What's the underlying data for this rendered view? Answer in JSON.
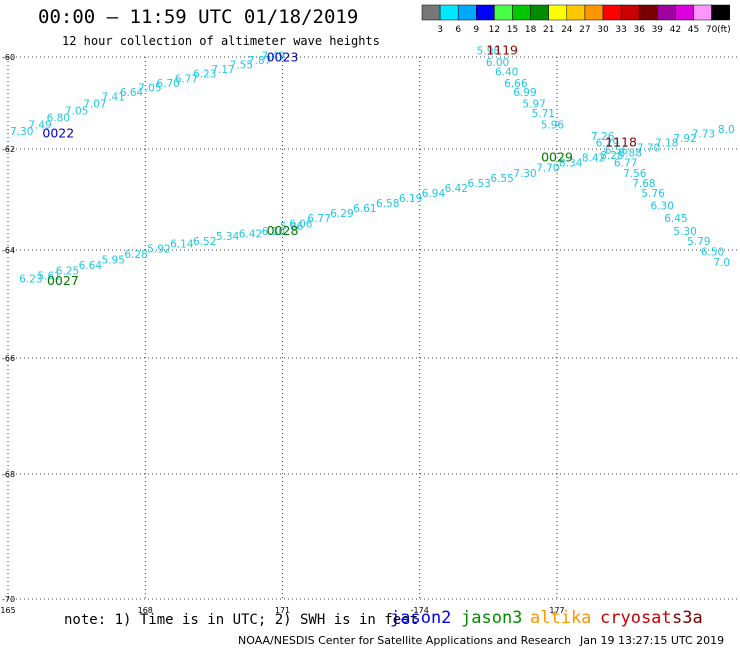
{
  "header": {
    "title": "00:00 – 11:59 UTC 01/18/2019",
    "subtitle": "12 hour collection of altimeter wave heights"
  },
  "scale": {
    "unit": "(ft)",
    "labels": [
      "3",
      "6",
      "9",
      "12",
      "15",
      "18",
      "21",
      "24",
      "27",
      "30",
      "33",
      "36",
      "39",
      "42",
      "45",
      "70"
    ],
    "colors": [
      "#777777",
      "#00e8ff",
      "#00a8ff",
      "#0000ff",
      "#48ff48",
      "#00c800",
      "#008c00",
      "#ffff00",
      "#ffc800",
      "#ff9600",
      "#ff0000",
      "#c80000",
      "#780000",
      "#a000a0",
      "#dc00dc",
      "#ff96ff",
      "#000000"
    ]
  },
  "chart_data": {
    "type": "scatter",
    "title": "00:00 – 11:59 UTC 01/18/2019",
    "subtitle": "12 hour collection of altimeter wave heights",
    "x_ticks": [
      "165",
      "168",
      "171",
      "-174",
      "177"
    ],
    "y_ticks": [
      "-60",
      "-62",
      "-64",
      "-66",
      "-68",
      "-70"
    ],
    "grid": true,
    "series": [
      {
        "name": "0022",
        "satellite": "jason2",
        "label_color": "#0000c8",
        "label": {
          "lon": 166.1,
          "lat": -61.75
        },
        "points": [
          {
            "lon": 165.3,
            "lat": -61.7,
            "v": "7.30"
          },
          {
            "lon": 165.7,
            "lat": -61.55,
            "v": "7.49"
          },
          {
            "lon": 166.1,
            "lat": -61.4,
            "v": "6.80"
          },
          {
            "lon": 166.5,
            "lat": -61.25,
            "v": "7.05"
          },
          {
            "lon": 166.9,
            "lat": -61.1,
            "v": "7.07"
          },
          {
            "lon": 167.3,
            "lat": -60.95,
            "v": "7.41"
          },
          {
            "lon": 167.7,
            "lat": -60.85,
            "v": "6.64"
          },
          {
            "lon": 168.1,
            "lat": -60.75,
            "v": "7.05"
          },
          {
            "lon": 168.5,
            "lat": -60.65,
            "v": "6.70"
          },
          {
            "lon": 168.9,
            "lat": -60.55,
            "v": "6.77"
          },
          {
            "lon": 169.3,
            "lat": -60.45,
            "v": "6.23"
          },
          {
            "lon": 169.7,
            "lat": -60.35,
            "v": "7.17"
          },
          {
            "lon": 170.1,
            "lat": -60.25,
            "v": "7.55"
          },
          {
            "lon": 170.5,
            "lat": -60.15,
            "v": "7.87"
          },
          {
            "lon": 170.8,
            "lat": -60.05,
            "v": "7.49"
          }
        ]
      },
      {
        "name": "0023",
        "satellite": "jason2",
        "label_color": "#0000c8",
        "label": {
          "lon": 171.0,
          "lat": -60.1
        },
        "points": []
      },
      {
        "name": "0027",
        "satellite": "jason3",
        "label_color": "#007800",
        "label": {
          "lon": 166.2,
          "lat": -64.65
        },
        "points": [
          {
            "lon": 165.5,
            "lat": -64.6,
            "v": "6.23"
          },
          {
            "lon": 165.9,
            "lat": -64.55,
            "v": "5.61"
          },
          {
            "lon": 166.3,
            "lat": -64.45,
            "v": "6.25"
          },
          {
            "lon": 166.8,
            "lat": -64.35,
            "v": "6.64"
          },
          {
            "lon": 167.3,
            "lat": -64.25,
            "v": "5.95"
          },
          {
            "lon": 167.8,
            "lat": -64.15,
            "v": "6.28"
          },
          {
            "lon": 168.3,
            "lat": -64.05,
            "v": "5.92"
          },
          {
            "lon": 168.8,
            "lat": -63.95,
            "v": "6.14"
          },
          {
            "lon": 169.3,
            "lat": -63.9,
            "v": "6.52"
          },
          {
            "lon": 169.8,
            "lat": -63.8,
            "v": "5.34"
          },
          {
            "lon": 170.3,
            "lat": -63.75,
            "v": "6.42"
          },
          {
            "lon": 170.8,
            "lat": -63.7,
            "v": "6.10"
          }
        ]
      },
      {
        "name": "0028",
        "satellite": "jason3",
        "label_color": "#007800",
        "label": {
          "lon": 171.0,
          "lat": -63.7
        },
        "points": [
          {
            "lon": 171.2,
            "lat": -63.6,
            "v": "5.86"
          },
          {
            "lon": 171.4,
            "lat": -63.55,
            "v": "6.06"
          },
          {
            "lon": 171.8,
            "lat": -63.45,
            "v": "6.77"
          },
          {
            "lon": 172.3,
            "lat": -63.35,
            "v": "6.29"
          },
          {
            "lon": 172.8,
            "lat": -63.25,
            "v": "6.61"
          },
          {
            "lon": 173.3,
            "lat": -63.15,
            "v": "6.58"
          },
          {
            "lon": 173.8,
            "lat": -63.05,
            "v": "6.19"
          },
          {
            "lon": 174.3,
            "lat": -62.95,
            "v": "6.94"
          },
          {
            "lon": 174.8,
            "lat": -62.85,
            "v": "6.42"
          },
          {
            "lon": 175.3,
            "lat": -62.75,
            "v": "6.53"
          },
          {
            "lon": 175.8,
            "lat": -62.65,
            "v": "6.55"
          },
          {
            "lon": 176.3,
            "lat": -62.55,
            "v": "7.30"
          },
          {
            "lon": 176.8,
            "lat": -62.45,
            "v": "7.70"
          },
          {
            "lon": 177.3,
            "lat": -62.35,
            "v": "8.34"
          },
          {
            "lon": 177.8,
            "lat": -62.25,
            "v": "8.42"
          },
          {
            "lon": 178.2,
            "lat": -62.2,
            "v": "8.28"
          }
        ]
      },
      {
        "name": "0029",
        "satellite": "jason3",
        "label_color": "#007800",
        "label": {
          "lon": 177.0,
          "lat": -62.25
        },
        "points": [
          {
            "lon": 178.6,
            "lat": -62.15,
            "v": "8.88"
          },
          {
            "lon": 179.0,
            "lat": -62.05,
            "v": "7.70"
          },
          {
            "lon": 179.4,
            "lat": -61.95,
            "v": "7.18"
          },
          {
            "lon": 179.8,
            "lat": -61.85,
            "v": "7.92"
          },
          {
            "lon": 180.2,
            "lat": -61.75,
            "v": "7.73"
          },
          {
            "lon": 180.7,
            "lat": -61.65,
            "v": "8.0"
          }
        ]
      },
      {
        "name": "1118",
        "satellite": "cryosat",
        "label_color": "#8c0000",
        "label": {
          "lon": 178.4,
          "lat": -61.95
        },
        "points": [
          {
            "lon": 178.0,
            "lat": -61.8,
            "v": "7.26"
          },
          {
            "lon": 178.1,
            "lat": -61.95,
            "v": "6.29"
          },
          {
            "lon": 178.3,
            "lat": -62.1,
            "v": "6.56"
          },
          {
            "lon": 178.5,
            "lat": -62.35,
            "v": "6.77"
          },
          {
            "lon": 178.7,
            "lat": -62.55,
            "v": "7.56"
          },
          {
            "lon": 178.9,
            "lat": -62.75,
            "v": "7.68"
          },
          {
            "lon": 179.1,
            "lat": -62.95,
            "v": "5.76"
          },
          {
            "lon": 179.3,
            "lat": -63.2,
            "v": "6.30"
          },
          {
            "lon": 179.6,
            "lat": -63.45,
            "v": "6.45"
          },
          {
            "lon": 179.8,
            "lat": -63.7,
            "v": "5.30"
          },
          {
            "lon": 180.1,
            "lat": -63.9,
            "v": "5.79"
          },
          {
            "lon": 180.4,
            "lat": -64.1,
            "v": "6.50"
          },
          {
            "lon": 180.6,
            "lat": -64.3,
            "v": "7.0"
          }
        ]
      },
      {
        "name": "1119",
        "satellite": "cryosat",
        "label_color": "#8c0000",
        "label": {
          "lon": 175.8,
          "lat": -59.95
        },
        "points": [
          {
            "lon": 175.5,
            "lat": -59.95,
            "v": "5.98"
          },
          {
            "lon": 175.7,
            "lat": -60.2,
            "v": "6.00"
          },
          {
            "lon": 175.9,
            "lat": -60.4,
            "v": "6.40"
          },
          {
            "lon": 176.1,
            "lat": -60.65,
            "v": "6.66"
          },
          {
            "lon": 176.3,
            "lat": -60.85,
            "v": "6.99"
          },
          {
            "lon": 176.5,
            "lat": -61.1,
            "v": "5.97"
          },
          {
            "lon": 176.7,
            "lat": -61.3,
            "v": "5.71"
          },
          {
            "lon": 176.9,
            "lat": -61.55,
            "v": "5.96"
          }
        ]
      }
    ]
  },
  "note": "note: 1) Time is in UTC; 2) SWH is in feet",
  "legend": [
    {
      "name": "jason2",
      "color": "#0000ff"
    },
    {
      "name": "jason3",
      "color": "#008c00"
    },
    {
      "name": "altika",
      "color": "#ff9600"
    },
    {
      "name": "cryosat",
      "color": "#c80000"
    },
    {
      "name": "s3a",
      "color": "#780000"
    }
  ],
  "footer": {
    "credit": "NOAA/NESDIS Center for Satellite Applications and Research",
    "timestamp": "Jan 19 13:27:15 UTC 2019"
  }
}
